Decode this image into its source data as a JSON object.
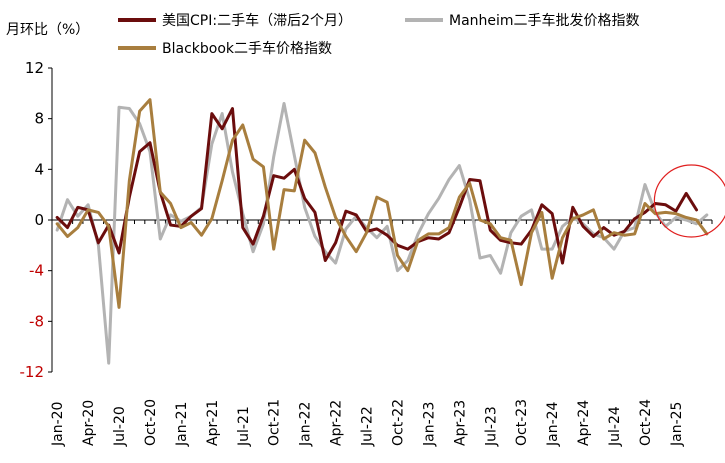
{
  "chart_data": {
    "type": "line",
    "unit_label": "月环比（%）",
    "ylim": [
      -12,
      12
    ],
    "yticks": [
      {
        "value": 12,
        "label": "12"
      },
      {
        "value": 8,
        "label": "8"
      },
      {
        "value": 4,
        "label": "4"
      },
      {
        "value": 0,
        "label": "0"
      },
      {
        "value": -4,
        "label": "-4"
      },
      {
        "value": -8,
        "label": "-8"
      },
      {
        "value": -12,
        "label": "-12"
      }
    ],
    "negative_tick_color": "#c00000",
    "positive_tick_color": "#000000",
    "x": [
      "2020-01",
      "2020-02",
      "2020-03",
      "2020-04",
      "2020-05",
      "2020-06",
      "2020-07",
      "2020-08",
      "2020-09",
      "2020-10",
      "2020-11",
      "2020-12",
      "2021-01",
      "2021-02",
      "2021-03",
      "2021-04",
      "2021-05",
      "2021-06",
      "2021-07",
      "2021-08",
      "2021-09",
      "2021-10",
      "2021-11",
      "2021-12",
      "2022-01",
      "2022-02",
      "2022-03",
      "2022-04",
      "2022-05",
      "2022-06",
      "2022-07",
      "2022-08",
      "2022-09",
      "2022-10",
      "2022-11",
      "2022-12",
      "2023-01",
      "2023-02",
      "2023-03",
      "2023-04",
      "2023-05",
      "2023-06",
      "2023-07",
      "2023-08",
      "2023-09",
      "2023-10",
      "2023-11",
      "2023-12",
      "2024-01",
      "2024-02",
      "2024-03",
      "2024-04",
      "2024-05",
      "2024-06",
      "2024-07",
      "2024-08",
      "2024-09",
      "2024-10",
      "2024-11",
      "2024-12",
      "2025-01",
      "2025-02",
      "2025-03",
      "2025-04"
    ],
    "xtick_labels": [
      {
        "index": 0,
        "label": "Jan-20"
      },
      {
        "index": 3,
        "label": "Apr-20"
      },
      {
        "index": 6,
        "label": "Jul-20"
      },
      {
        "index": 9,
        "label": "Oct-20"
      },
      {
        "index": 12,
        "label": "Jan-21"
      },
      {
        "index": 15,
        "label": "Apr-21"
      },
      {
        "index": 18,
        "label": "Jul-21"
      },
      {
        "index": 21,
        "label": "Oct-21"
      },
      {
        "index": 24,
        "label": "Jan-22"
      },
      {
        "index": 27,
        "label": "Apr-22"
      },
      {
        "index": 30,
        "label": "Jul-22"
      },
      {
        "index": 33,
        "label": "Oct-22"
      },
      {
        "index": 36,
        "label": "Jan-23"
      },
      {
        "index": 39,
        "label": "Apr-23"
      },
      {
        "index": 42,
        "label": "Jul-23"
      },
      {
        "index": 45,
        "label": "Oct-23"
      },
      {
        "index": 48,
        "label": "Jan-24"
      },
      {
        "index": 51,
        "label": "Apr-24"
      },
      {
        "index": 54,
        "label": "Jul-24"
      },
      {
        "index": 57,
        "label": "Oct-24"
      },
      {
        "index": 60,
        "label": "Jan-25"
      }
    ],
    "series": [
      {
        "name": "美国CPI:二手车（滞后2个月）",
        "color": "#6b0d0d",
        "values": [
          0.2,
          -0.6,
          1.0,
          0.8,
          -1.8,
          -0.4,
          -2.6,
          1.8,
          5.4,
          6.1,
          2.2,
          -0.4,
          -0.5,
          0.3,
          0.9,
          8.4,
          7.2,
          8.8,
          -0.6,
          -1.9,
          0.3,
          3.5,
          3.3,
          4.0,
          1.7,
          0.6,
          -3.2,
          -1.8,
          0.7,
          0.4,
          -0.9,
          -0.7,
          -1.2,
          -2.0,
          -2.3,
          -1.7,
          -1.4,
          -1.5,
          -1.0,
          1.0,
          3.2,
          3.1,
          -0.8,
          -1.6,
          -1.8,
          -1.9,
          -0.8,
          1.2,
          0.5,
          -3.4,
          1.0,
          -0.5,
          -1.3,
          -0.6,
          -1.2,
          -0.9,
          0.1,
          0.6,
          1.3,
          1.2,
          0.7,
          2.1,
          0.8,
          null
        ]
      },
      {
        "name": "Manheim二手车批发价格指数",
        "color": "#b3b3b3",
        "values": [
          -0.8,
          1.6,
          0.3,
          1.2,
          -2.0,
          -11.3,
          8.9,
          8.8,
          7.6,
          5.4,
          -1.5,
          0.4,
          -0.1,
          0.3,
          1.0,
          6.0,
          8.4,
          3.8,
          0.5,
          -2.5,
          -0.3,
          5.0,
          9.2,
          5.1,
          1.0,
          -1.3,
          -2.5,
          -3.4,
          -0.7,
          0.3,
          -0.6,
          -1.4,
          -0.5,
          -4.0,
          -3.2,
          -1.1,
          0.5,
          1.7,
          3.2,
          4.3,
          1.6,
          -3.0,
          -2.8,
          -4.2,
          -1.0,
          0.3,
          0.8,
          -2.3,
          -2.3,
          -0.5,
          0.2,
          -0.3,
          -1.1,
          -1.4,
          -2.3,
          -0.9,
          -0.6,
          2.8,
          0.6,
          -0.5,
          0.2,
          0.0,
          -0.3,
          0.4
        ]
      },
      {
        "name": "Blackbook二手车价格指数",
        "color": "#a87e3e",
        "values": [
          -0.3,
          -1.3,
          -0.6,
          0.8,
          0.6,
          -0.5,
          -6.9,
          3.1,
          8.6,
          9.5,
          2.2,
          1.3,
          -0.6,
          -0.2,
          -1.2,
          0.1,
          3.1,
          6.3,
          7.5,
          4.8,
          4.2,
          -2.3,
          2.4,
          2.3,
          6.3,
          5.3,
          2.6,
          0.2,
          -1.3,
          -2.5,
          -1.0,
          1.8,
          1.4,
          -2.8,
          -4.0,
          -1.6,
          -1.1,
          -1.1,
          -0.6,
          1.8,
          2.9,
          0.0,
          -0.3,
          -1.4,
          -1.6,
          -5.1,
          -1.0,
          0.6,
          -4.6,
          -1.4,
          0.1,
          0.4,
          0.8,
          -1.5,
          -1.0,
          -1.2,
          -1.1,
          1.3,
          0.5,
          0.6,
          0.5,
          0.2,
          0.0,
          -1.1
        ]
      }
    ],
    "annotation": {
      "type": "ellipse",
      "color": "#e02020",
      "center_index": 61.5,
      "center_value": 1.5
    }
  }
}
